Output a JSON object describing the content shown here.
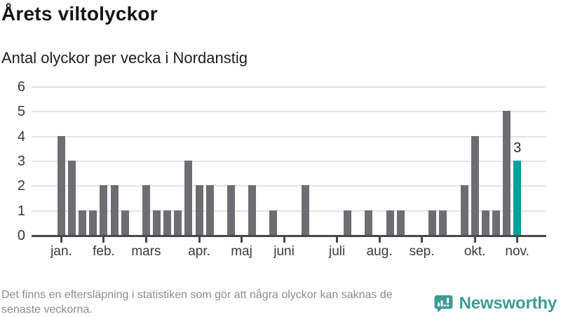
{
  "title": "Årets viltolyckor",
  "subtitle": "Antal olyckor per vecka i Nordanstig",
  "footnote": "Det finns en eftersläpning i statistiken som gör att några olyckor kan saknas de senaste veckorna.",
  "logo": {
    "name": "Newsworthy",
    "icon": "bar-chart-speech-bubble-icon"
  },
  "colors": {
    "bar": "#6e6d72",
    "highlight": "#00a29a",
    "grid": "#e4e4e4",
    "axis": "#47474c",
    "labels": "#38383d",
    "footnote": "#8d8d92",
    "logo": "#3f9c96"
  },
  "chart_data": {
    "type": "bar",
    "title": "Årets viltolyckor",
    "subtitle": "Antal olyckor per vecka i Nordanstig",
    "xlabel": "",
    "ylabel": "",
    "ylim": [
      0,
      6
    ],
    "y_ticks": [
      0,
      1,
      2,
      3,
      4,
      5,
      6
    ],
    "grid": true,
    "unit": "olyckor per vecka",
    "values": [
      4,
      3,
      1,
      1,
      2,
      2,
      1,
      0,
      2,
      1,
      1,
      1,
      3,
      2,
      2,
      0,
      2,
      0,
      2,
      0,
      1,
      0,
      0,
      2,
      0,
      0,
      0,
      1,
      0,
      1,
      0,
      1,
      1,
      0,
      0,
      1,
      1,
      0,
      2,
      4,
      1,
      1,
      5,
      3
    ],
    "highlight_index": 43,
    "highlight_label": "3",
    "month_ticks": [
      {
        "label": "jan.",
        "week": 0
      },
      {
        "label": "feb.",
        "week": 4
      },
      {
        "label": "mars",
        "week": 8
      },
      {
        "label": "apr.",
        "week": 13
      },
      {
        "label": "maj",
        "week": 17
      },
      {
        "label": "juni",
        "week": 21
      },
      {
        "label": "juli",
        "week": 26
      },
      {
        "label": "aug.",
        "week": 30
      },
      {
        "label": "sep.",
        "week": 34
      },
      {
        "label": "okt.",
        "week": 39
      },
      {
        "label": "nov.",
        "week": 43
      }
    ]
  }
}
